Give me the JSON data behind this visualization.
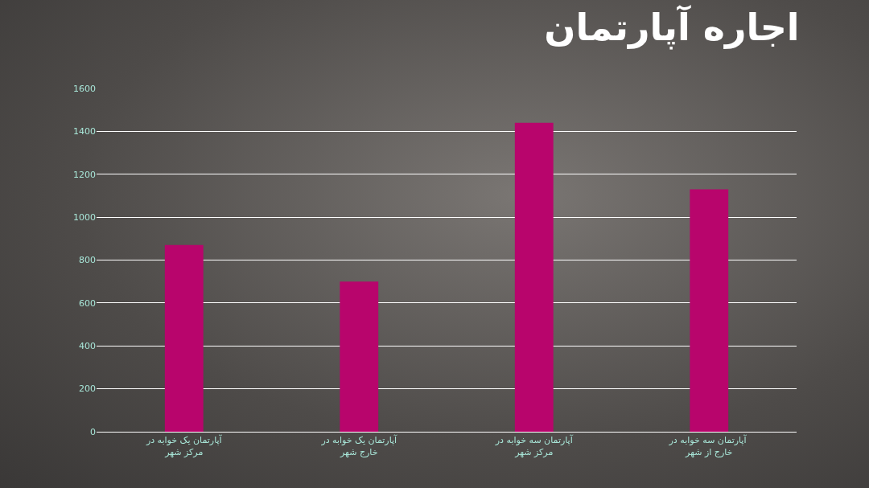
{
  "chart_data": {
    "type": "bar",
    "title": "اجاره آپارتمان",
    "categories": [
      "آپارتمان یک خوابه در مرکز شهر",
      "آپارتمان یک خوابه در خارج شهر",
      "آپارتمان سه خوابه در مرکز شهر",
      "آپارتمان سه خوابه در  خارج از شهر"
    ],
    "values": [
      870,
      700,
      1440,
      1130
    ],
    "color": "#b8056c",
    "ylim": [
      0,
      1600
    ],
    "yticks": [
      0,
      200,
      400,
      600,
      800,
      1000,
      1200,
      1400,
      1600
    ],
    "grid": "y"
  }
}
